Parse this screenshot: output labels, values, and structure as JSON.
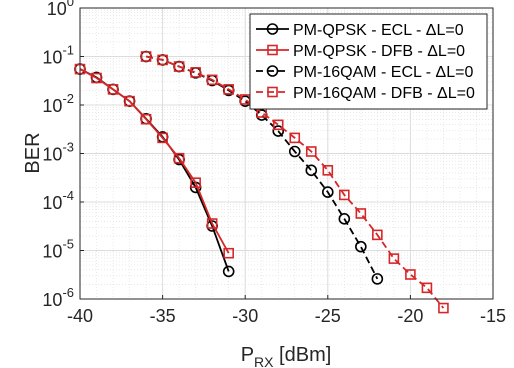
{
  "chart_data": {
    "type": "line",
    "xlabel": "P",
    "xlabel_sub": "RX",
    "xlabel_unit": " [dBm]",
    "ylabel": "BER",
    "xlim": [
      -40,
      -15
    ],
    "ylim": [
      1e-06,
      1
    ],
    "yscale": "log",
    "x_ticks": [
      -40,
      -35,
      -30,
      -25,
      -20,
      -15
    ],
    "x_tick_labels": [
      "-40",
      "-35",
      "-30",
      "-25",
      "-20",
      "-15"
    ],
    "y_ticks": [
      {
        "value": 1,
        "exp": "0"
      },
      {
        "value": 0.1,
        "exp": "-1"
      },
      {
        "value": 0.01,
        "exp": "-2"
      },
      {
        "value": 0.001,
        "exp": "-3"
      },
      {
        "value": 0.0001,
        "exp": "-4"
      },
      {
        "value": 1e-05,
        "exp": "-5"
      },
      {
        "value": 1e-06,
        "exp": "-6"
      }
    ],
    "y_tick_base": "10",
    "grid": true,
    "legend_position": "top-right",
    "series": [
      {
        "name": "PM-QPSK - ECL - ΔL=0",
        "color": "#000000",
        "marker": "circle",
        "dashed": false,
        "x": [
          -40,
          -39,
          -38,
          -37,
          -36,
          -35,
          -34,
          -33,
          -32,
          -31
        ],
        "y": [
          0.055,
          0.037,
          0.021,
          0.012,
          0.0052,
          0.0022,
          0.00075,
          0.0002,
          3.2e-05,
          3.7e-06
        ]
      },
      {
        "name": "PM-QPSK - DFB - ΔL=0",
        "color": "#d62728",
        "marker": "square",
        "dashed": false,
        "x": [
          -40,
          -39,
          -38,
          -37,
          -36,
          -35,
          -34,
          -33,
          -32,
          -31
        ],
        "y": [
          0.055,
          0.036,
          0.021,
          0.012,
          0.0051,
          0.0021,
          0.0008,
          0.00025,
          3.6e-05,
          8.8e-06
        ]
      },
      {
        "name": "PM-16QAM - ECL - ΔL=0",
        "color": "#000000",
        "marker": "circle",
        "dashed": true,
        "x": [
          -36,
          -35,
          -34,
          -33,
          -32,
          -31,
          -30,
          -29,
          -28,
          -27,
          -26,
          -25,
          -24,
          -23,
          -22
        ],
        "y": [
          0.1,
          0.085,
          0.062,
          0.046,
          0.032,
          0.02,
          0.012,
          0.0062,
          0.0029,
          0.0011,
          0.00045,
          0.00016,
          4.5e-05,
          1.2e-05,
          2.6e-06
        ]
      },
      {
        "name": "PM-16QAM - DFB - ΔL=0",
        "color": "#d62728",
        "marker": "square",
        "dashed": true,
        "x": [
          -36,
          -35,
          -34,
          -33,
          -32,
          -31,
          -30,
          -29,
          -28,
          -27,
          -26,
          -25,
          -24,
          -23,
          -22,
          -21,
          -20,
          -19,
          -18
        ],
        "y": [
          0.1,
          0.085,
          0.062,
          0.047,
          0.033,
          0.021,
          0.013,
          0.007,
          0.0039,
          0.0021,
          0.0011,
          0.00045,
          0.00014,
          5.8e-05,
          2.1e-05,
          6.8e-06,
          3.2e-06,
          1.7e-06,
          6.5e-07
        ]
      }
    ]
  }
}
